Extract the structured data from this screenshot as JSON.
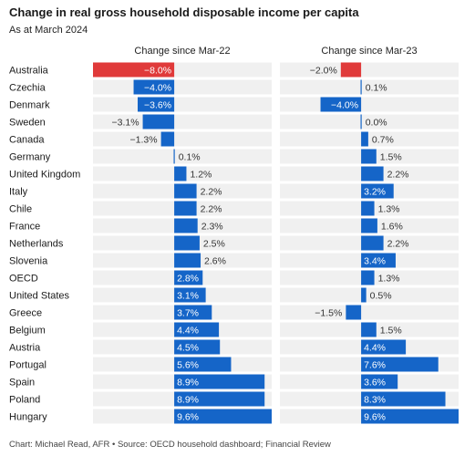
{
  "header": {
    "title": "Change in real gross household disposable income per capita",
    "subtitle": "As at March 2024"
  },
  "footer": {
    "source": "Chart: Michael Read, AFR • Source: OECD household dashboard; Financial Review"
  },
  "colors": {
    "positive": "#1565c8",
    "negative": "#1565c8",
    "highlight": "#e03a3a",
    "row_band": "#f0f0f0"
  },
  "chart_data": [
    {
      "type": "bar",
      "orientation": "horizontal",
      "title": "Change since Mar-22",
      "categories": [
        "Australia",
        "Czechia",
        "Denmark",
        "Sweden",
        "Canada",
        "Germany",
        "United Kingdom",
        "Italy",
        "Chile",
        "France",
        "Netherlands",
        "Slovenia",
        "OECD",
        "United States",
        "Greece",
        "Belgium",
        "Austria",
        "Portugal",
        "Spain",
        "Poland",
        "Hungary"
      ],
      "values": [
        -8.0,
        -4.0,
        -3.6,
        -3.1,
        -1.3,
        0.1,
        1.2,
        2.2,
        2.2,
        2.3,
        2.5,
        2.6,
        2.8,
        3.1,
        3.7,
        4.4,
        4.5,
        5.6,
        8.9,
        8.9,
        9.6
      ],
      "labels": [
        "−8.0%",
        "−4.0%",
        "−3.6%",
        "−3.1%",
        "−1.3%",
        "0.1%",
        "1.2%",
        "2.2%",
        "2.2%",
        "2.3%",
        "2.5%",
        "2.6%",
        "2.8%",
        "3.1%",
        "3.7%",
        "4.4%",
        "4.5%",
        "5.6%",
        "8.9%",
        "8.9%",
        "9.6%"
      ],
      "highlight": [
        "Australia"
      ],
      "xlim": [
        -8.0,
        9.6
      ]
    },
    {
      "type": "bar",
      "orientation": "horizontal",
      "title": "Change since Mar-23",
      "categories": [
        "Australia",
        "Czechia",
        "Denmark",
        "Sweden",
        "Canada",
        "Germany",
        "United Kingdom",
        "Italy",
        "Chile",
        "France",
        "Netherlands",
        "Slovenia",
        "OECD",
        "United States",
        "Greece",
        "Belgium",
        "Austria",
        "Portugal",
        "Spain",
        "Poland",
        "Hungary"
      ],
      "values": [
        -2.0,
        0.1,
        -4.0,
        0.0,
        0.7,
        1.5,
        2.2,
        3.2,
        1.3,
        1.6,
        2.2,
        3.4,
        1.3,
        0.5,
        -1.5,
        1.5,
        4.4,
        7.6,
        3.6,
        8.3,
        9.6
      ],
      "labels": [
        "−2.0%",
        "0.1%",
        "−4.0%",
        "0.0%",
        "0.7%",
        "1.5%",
        "2.2%",
        "3.2%",
        "1.3%",
        "1.6%",
        "2.2%",
        "3.4%",
        "1.3%",
        "0.5%",
        "−1.5%",
        "1.5%",
        "4.4%",
        "7.6%",
        "3.6%",
        "8.3%",
        "9.6%"
      ],
      "highlight": [
        "Australia"
      ],
      "xlim": [
        -8.0,
        9.6
      ]
    }
  ]
}
